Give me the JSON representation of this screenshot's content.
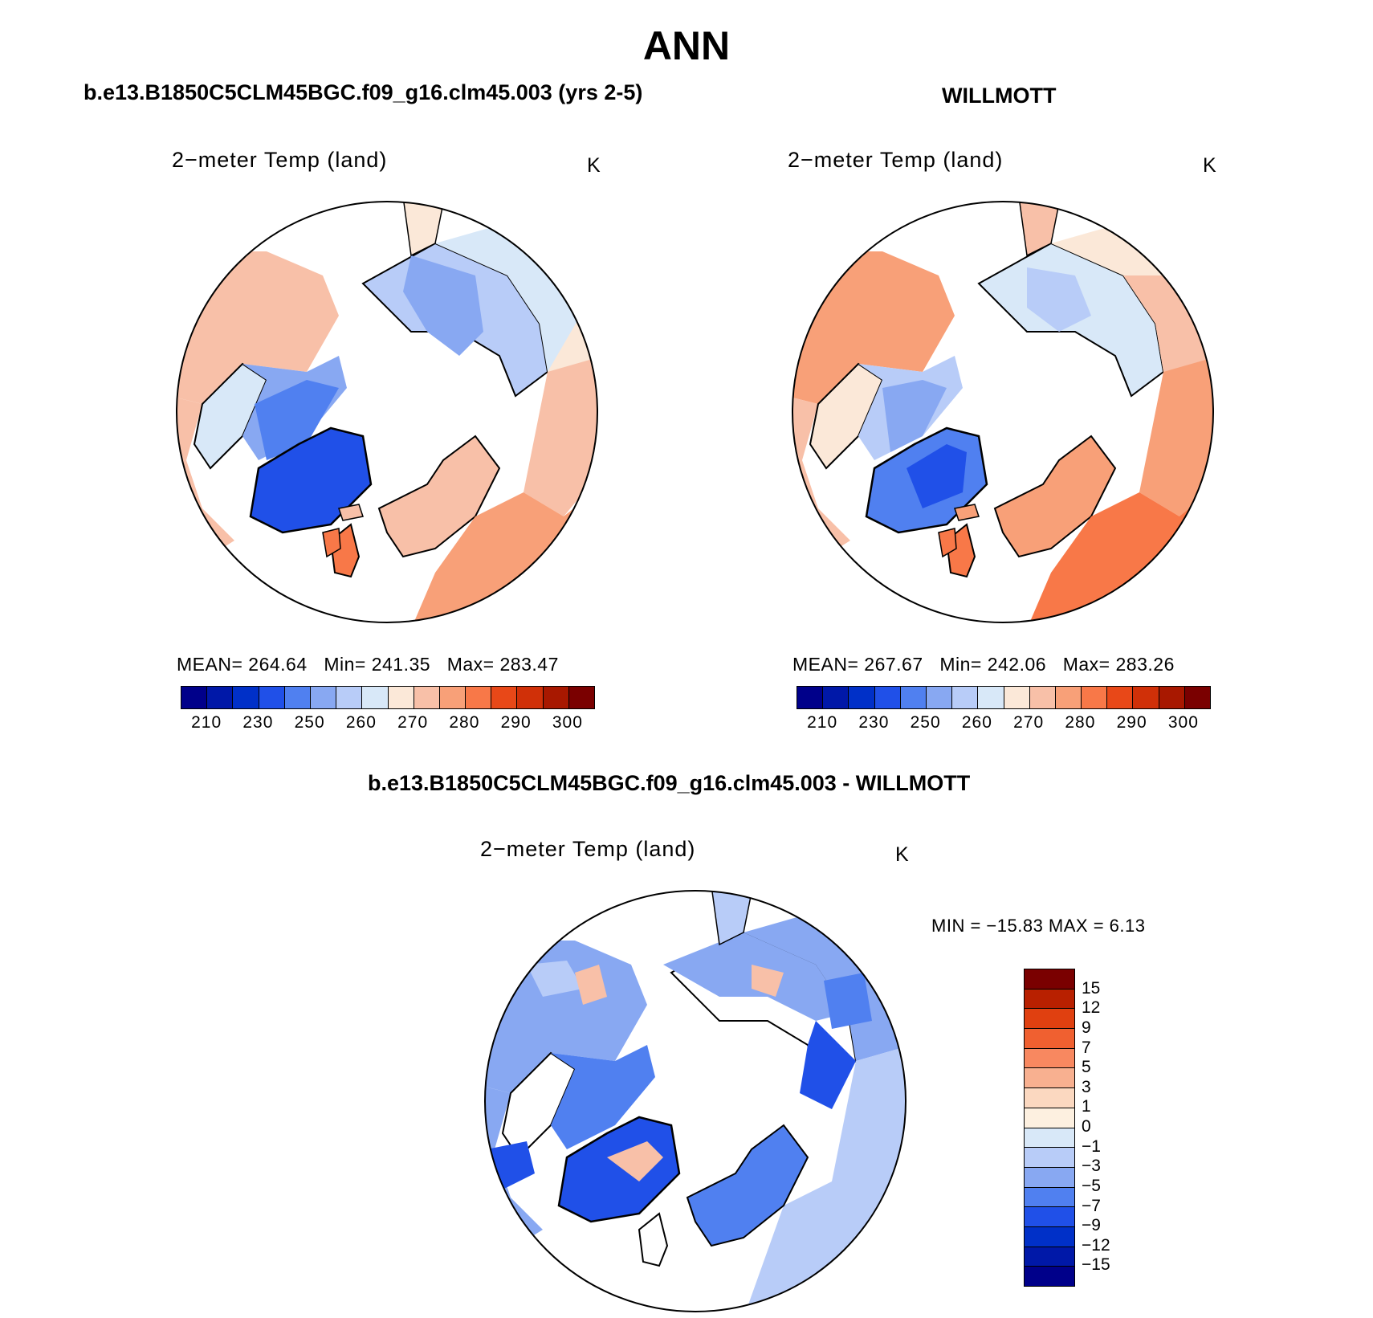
{
  "title": "ANN",
  "panels": {
    "model": {
      "header": "b.e13.B1850C5CLM45BGC.f09_g16.clm45.003 (yrs 2-5)",
      "variable": "2−meter Temp (land)",
      "units": "K",
      "stats": {
        "mean_label": "MEAN=",
        "mean": "264.64",
        "min_label": "Min=",
        "min": "241.35",
        "max_label": "Max=",
        "max": "283.47"
      }
    },
    "obs": {
      "header": "WILLMOTT",
      "variable": "2−meter Temp (land)",
      "units": "K",
      "stats": {
        "mean_label": "MEAN=",
        "mean": "267.67",
        "min_label": "Min=",
        "min": "242.06",
        "max_label": "Max=",
        "max": "283.26"
      }
    },
    "diff": {
      "header": "b.e13.B1850C5CLM45BGC.f09_g16.clm45.003 - WILLMOTT",
      "variable": "2−meter Temp (land)",
      "units": "K",
      "minmax": "MIN = −15.83 MAX =    6.13"
    }
  },
  "colorbar_abs": {
    "colors": [
      "#00008a",
      "#0018a8",
      "#0030c8",
      "#2050e8",
      "#5080f0",
      "#88a8f2",
      "#b8ccf8",
      "#d8e8f8",
      "#fbe8d8",
      "#f8c0a8",
      "#f8a078",
      "#f87848",
      "#e84818",
      "#d03008",
      "#a81800",
      "#7a0000"
    ],
    "labels": [
      "210",
      "230",
      "250",
      "260",
      "270",
      "280",
      "290",
      "300"
    ]
  },
  "colorbar_diff": {
    "colors": [
      "#7a0000",
      "#b82000",
      "#e04010",
      "#f06030",
      "#f88860",
      "#f8b090",
      "#fbd8c0",
      "#fdf0e0",
      "#d8e8f8",
      "#b8ccf8",
      "#88a8f2",
      "#5080f0",
      "#2050e8",
      "#0030c8",
      "#0018a8",
      "#00008a"
    ],
    "labels": [
      "15",
      "12",
      "9",
      "7",
      "5",
      "3",
      "1",
      "0",
      "−1",
      "−3",
      "−5",
      "−7",
      "−9",
      "−12",
      "−15"
    ]
  }
}
